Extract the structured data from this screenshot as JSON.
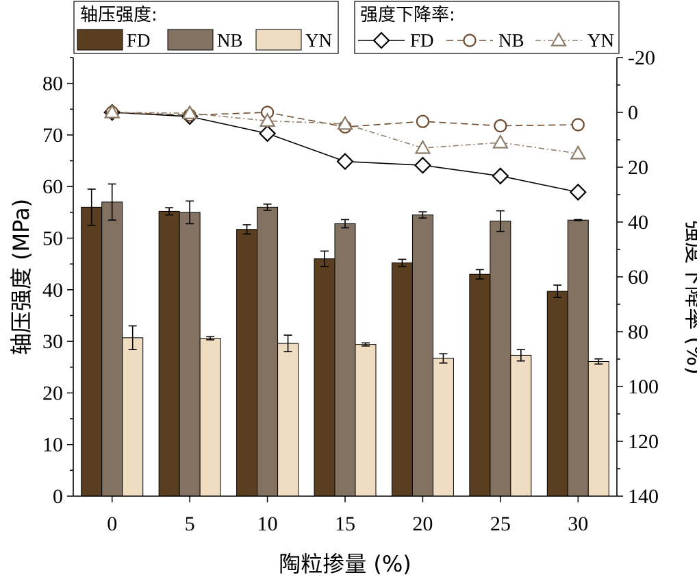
{
  "chart_data": {
    "type": "bar",
    "x_label": "陶粒掺量 (%)",
    "categories": [
      "0",
      "5",
      "10",
      "15",
      "20",
      "25",
      "30"
    ],
    "left_axis": {
      "label": "轴压强度 (MPa)",
      "ylim": [
        0,
        85
      ],
      "ticks": [
        0,
        10,
        20,
        30,
        40,
        50,
        60,
        70,
        80
      ]
    },
    "right_axis": {
      "label": "强度下降率 (%)",
      "ylim": [
        -20,
        140
      ],
      "inverted": true,
      "ticks": [
        -20,
        0,
        20,
        40,
        60,
        80,
        100,
        120,
        140
      ]
    },
    "bar_legend_title": "轴压强度:",
    "line_legend_title": "强度下降率:",
    "bar_series": [
      {
        "name": "FD",
        "color": "#5a3e20",
        "values": [
          56.0,
          55.2,
          51.7,
          46.0,
          45.2,
          43.0,
          39.7
        ],
        "errors": [
          3.5,
          0.7,
          0.9,
          1.5,
          0.7,
          0.9,
          1.2
        ]
      },
      {
        "name": "NB",
        "color": "#837261",
        "values": [
          57.0,
          55.0,
          56.0,
          52.8,
          54.5,
          53.3,
          53.5
        ],
        "errors": [
          3.5,
          2.2,
          0.6,
          0.8,
          0.6,
          2.0,
          0.1
        ]
      },
      {
        "name": "YN",
        "color": "#f0dcc0",
        "values": [
          30.7,
          30.6,
          29.6,
          29.4,
          26.7,
          27.3,
          26.1
        ],
        "errors": [
          2.3,
          0.3,
          1.6,
          0.3,
          0.9,
          1.1,
          0.5
        ]
      }
    ],
    "line_series": [
      {
        "name": "FD",
        "marker": "diamond",
        "dash": "solid",
        "color": "#000000",
        "values": [
          0,
          1.5,
          7.7,
          17.9,
          19.3,
          23.2,
          29.1
        ]
      },
      {
        "name": "NB",
        "marker": "circle",
        "dash": "dash",
        "color": "#6b4a2e",
        "values": [
          0,
          1.0,
          0.0,
          5.3,
          3.3,
          4.9,
          4.5
        ]
      },
      {
        "name": "YN",
        "marker": "triangle",
        "dash": "dashdot",
        "color": "#8e7c6a",
        "values": [
          0,
          0.3,
          3.1,
          4.2,
          13.0,
          11.0,
          15.0
        ]
      }
    ]
  }
}
